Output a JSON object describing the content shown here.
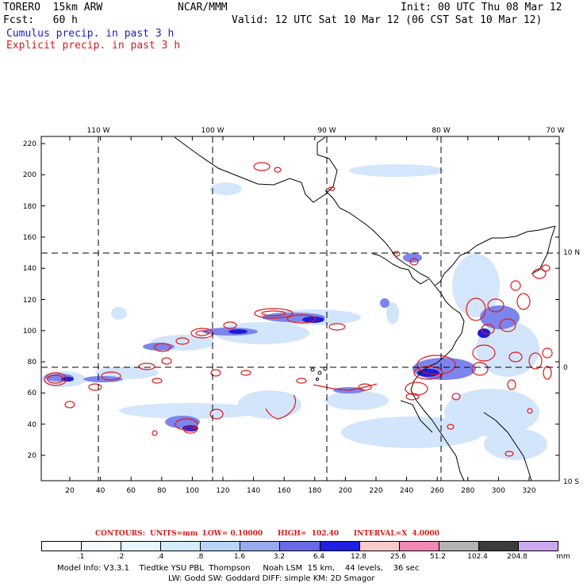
{
  "header": {
    "model_line": "TORERO  15km ARW",
    "org": "NCAR/MMM",
    "init": "Init: 00 UTC Thu 08 Mar 12",
    "fcst": "Fcst:   60 h",
    "valid": "Valid: 12 UTC Sat 10 Mar 12 (06 CST Sat 10 Mar 12)",
    "legend_cumulus": "Cumulus precip. in past 3 h",
    "legend_explicit": "Explicit precip. in past 3 h"
  },
  "map": {
    "lon_labels": [
      "110 W",
      "100 W",
      "90 W",
      "80 W",
      "70 W"
    ],
    "lat_labels": [
      "10 N",
      "0",
      "10 S"
    ],
    "y_ticks": [
      "220",
      "200",
      "180",
      "160",
      "140",
      "120",
      "100",
      "80",
      "60",
      "40",
      "20"
    ],
    "x_ticks": [
      "20",
      "40",
      "60",
      "80",
      "100",
      "120",
      "140",
      "160",
      "180",
      "200",
      "220",
      "240",
      "260",
      "280",
      "300",
      "320"
    ]
  },
  "contours_line": "CONTOURS:  UNITS=mm  LOW= 0.10000      HIGH=  102.40      INTERVAL=X  4.0000",
  "colorbar": {
    "labels": [
      ".1",
      ".2",
      ".4",
      ".8",
      "1.6",
      "3.2",
      "6.4",
      "12.8",
      "25.6",
      "51.2",
      "102.4",
      "204.8"
    ],
    "unit": "mm",
    "colors": [
      "#ffffff",
      "#f4fbff",
      "#e6f6ff",
      "#d4ecff",
      "#b8d4f8",
      "#9aaaf0",
      "#6a6ae8",
      "#2020e0",
      "#f8cccc",
      "#f088b8",
      "#b4b4b4",
      "#3c3c3c",
      "#cca8f0"
    ]
  },
  "footer": {
    "line1": "Model Info: V3.3.1    Tiedtke YSU PBL  Thompson     Noah LSM  15 km,    44 levels,    36 sec",
    "line2": "LW: Godd SW: Goddard DIFF: simple KM: 2D Smagor"
  }
}
